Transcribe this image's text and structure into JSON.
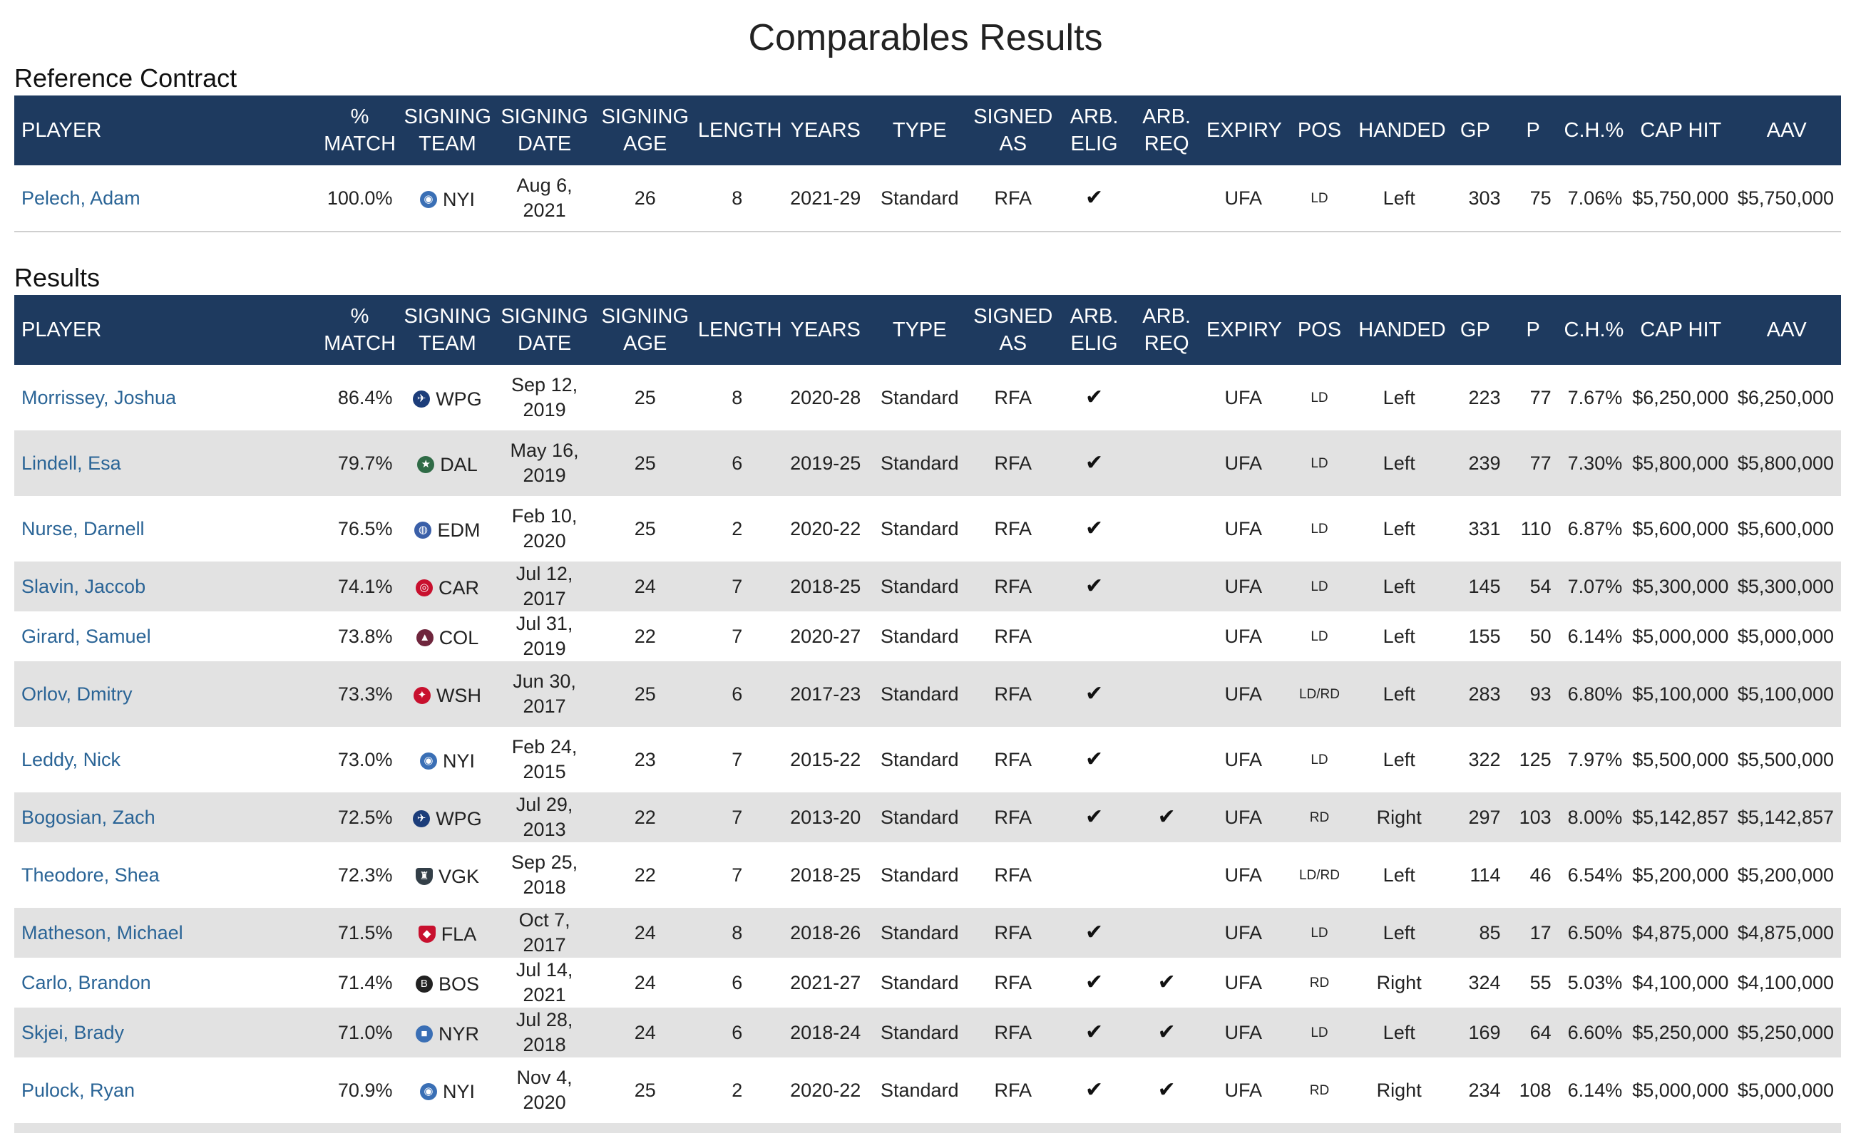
{
  "page_title": "Comparables Results",
  "reference_title": "Reference Contract",
  "results_title": "Results",
  "columns": {
    "player": "PLAYER",
    "match_l1": "%",
    "match_l2": "MATCH",
    "team_l1": "SIGNING",
    "team_l2": "TEAM",
    "date_l1": "SIGNING",
    "date_l2": "DATE",
    "age_l1": "SIGNING",
    "age_l2": "AGE",
    "length": "LENGTH",
    "years": "YEARS",
    "type": "TYPE",
    "signed_l1": "SIGNED",
    "signed_l2": "AS",
    "arbelig_l1": "ARB.",
    "arbelig_l2": "ELIG",
    "arbreq_l1": "ARB.",
    "arbreq_l2": "REQ",
    "expiry": "EXPIRY",
    "pos": "POS",
    "handed": "HANDED",
    "gp": "GP",
    "p": "P",
    "ch": "C.H.%",
    "cap": "CAP HIT",
    "aav": "AAV"
  },
  "team_icons": {
    "NYI": {
      "icon": "islanders-logo-icon",
      "color": "#3a6fb5",
      "glyph": "◉"
    },
    "WPG": {
      "icon": "jets-logo-icon",
      "color": "#1c3d7a",
      "glyph": "✈"
    },
    "DAL": {
      "icon": "stars-logo-icon",
      "color": "#2f6b46",
      "glyph": "★"
    },
    "EDM": {
      "icon": "oilers-logo-icon",
      "color": "#3a5fa8",
      "glyph": "◍"
    },
    "CAR": {
      "icon": "hurricanes-logo-icon",
      "color": "#c8102e",
      "glyph": "◎"
    },
    "COL": {
      "icon": "avalanche-logo-icon",
      "color": "#6f263d",
      "glyph": "▲"
    },
    "WSH": {
      "icon": "capitals-logo-icon",
      "color": "#c8102e",
      "glyph": "✦"
    },
    "VGK": {
      "icon": "golden-knights-logo-icon",
      "color": "#333f48",
      "glyph": "♜"
    },
    "FLA": {
      "icon": "panthers-logo-icon",
      "color": "#c8102e",
      "glyph": "◆"
    },
    "BOS": {
      "icon": "bruins-logo-icon",
      "color": "#222222",
      "glyph": "B"
    },
    "NYR": {
      "icon": "rangers-logo-icon",
      "color": "#3a6fb5",
      "glyph": "■"
    }
  },
  "check_mark": "✔",
  "reference": [
    {
      "player": "Pelech, Adam",
      "match": "100.0%",
      "team": "NYI",
      "date_l1": "Aug 6,",
      "date_l2": "2021",
      "age": "26",
      "length": "8",
      "years": "2021-29",
      "type": "Standard",
      "signed": "RFA",
      "arb_elig": true,
      "arb_req": false,
      "expiry": "UFA",
      "pos": "LD",
      "handed": "Left",
      "gp": "303",
      "p": "75",
      "ch": "7.06%",
      "cap": "$5,750,000",
      "aav": "$5,750,000"
    }
  ],
  "results": [
    {
      "player": "Morrissey, Joshua",
      "match": "86.4%",
      "team": "WPG",
      "date_l1": "Sep 12,",
      "date_l2": "2019",
      "age": "25",
      "length": "8",
      "years": "2020-28",
      "type": "Standard",
      "signed": "RFA",
      "arb_elig": true,
      "arb_req": false,
      "expiry": "UFA",
      "pos": "LD",
      "handed": "Left",
      "gp": "223",
      "p": "77",
      "ch": "7.67%",
      "cap": "$6,250,000",
      "aav": "$6,250,000"
    },
    {
      "player": "Lindell, Esa",
      "match": "79.7%",
      "team": "DAL",
      "date_l1": "May 16,",
      "date_l2": "2019",
      "age": "25",
      "length": "6",
      "years": "2019-25",
      "type": "Standard",
      "signed": "RFA",
      "arb_elig": true,
      "arb_req": false,
      "expiry": "UFA",
      "pos": "LD",
      "handed": "Left",
      "gp": "239",
      "p": "77",
      "ch": "7.30%",
      "cap": "$5,800,000",
      "aav": "$5,800,000"
    },
    {
      "player": "Nurse, Darnell",
      "match": "76.5%",
      "team": "EDM",
      "date_l1": "Feb 10,",
      "date_l2": "2020",
      "age": "25",
      "length": "2",
      "years": "2020-22",
      "type": "Standard",
      "signed": "RFA",
      "arb_elig": true,
      "arb_req": false,
      "expiry": "UFA",
      "pos": "LD",
      "handed": "Left",
      "gp": "331",
      "p": "110",
      "ch": "6.87%",
      "cap": "$5,600,000",
      "aav": "$5,600,000"
    },
    {
      "player": "Slavin, Jaccob",
      "match": "74.1%",
      "team": "CAR",
      "date_l1": "Jul 12, 2017",
      "date_l2": "",
      "age": "24",
      "length": "7",
      "years": "2018-25",
      "type": "Standard",
      "signed": "RFA",
      "arb_elig": true,
      "arb_req": false,
      "expiry": "UFA",
      "pos": "LD",
      "handed": "Left",
      "gp": "145",
      "p": "54",
      "ch": "7.07%",
      "cap": "$5,300,000",
      "aav": "$5,300,000"
    },
    {
      "player": "Girard, Samuel",
      "match": "73.8%",
      "team": "COL",
      "date_l1": "Jul 31, 2019",
      "date_l2": "",
      "age": "22",
      "length": "7",
      "years": "2020-27",
      "type": "Standard",
      "signed": "RFA",
      "arb_elig": false,
      "arb_req": false,
      "expiry": "UFA",
      "pos": "LD",
      "handed": "Left",
      "gp": "155",
      "p": "50",
      "ch": "6.14%",
      "cap": "$5,000,000",
      "aav": "$5,000,000"
    },
    {
      "player": "Orlov, Dmitry",
      "match": "73.3%",
      "team": "WSH",
      "date_l1": "Jun 30,",
      "date_l2": "2017",
      "age": "25",
      "length": "6",
      "years": "2017-23",
      "type": "Standard",
      "signed": "RFA",
      "arb_elig": true,
      "arb_req": false,
      "expiry": "UFA",
      "pos": "LD/RD",
      "handed": "Left",
      "gp": "283",
      "p": "93",
      "ch": "6.80%",
      "cap": "$5,100,000",
      "aav": "$5,100,000"
    },
    {
      "player": "Leddy, Nick",
      "match": "73.0%",
      "team": "NYI",
      "date_l1": "Feb 24,",
      "date_l2": "2015",
      "age": "23",
      "length": "7",
      "years": "2015-22",
      "type": "Standard",
      "signed": "RFA",
      "arb_elig": true,
      "arb_req": false,
      "expiry": "UFA",
      "pos": "LD",
      "handed": "Left",
      "gp": "322",
      "p": "125",
      "ch": "7.97%",
      "cap": "$5,500,000",
      "aav": "$5,500,000"
    },
    {
      "player": "Bogosian, Zach",
      "match": "72.5%",
      "team": "WPG",
      "date_l1": "Jul 29, 2013",
      "date_l2": "",
      "age": "22",
      "length": "7",
      "years": "2013-20",
      "type": "Standard",
      "signed": "RFA",
      "arb_elig": true,
      "arb_req": true,
      "expiry": "UFA",
      "pos": "RD",
      "handed": "Right",
      "gp": "297",
      "p": "103",
      "ch": "8.00%",
      "cap": "$5,142,857",
      "aav": "$5,142,857"
    },
    {
      "player": "Theodore, Shea",
      "match": "72.3%",
      "team": "VGK",
      "date_l1": "Sep 25,",
      "date_l2": "2018",
      "age": "22",
      "length": "7",
      "years": "2018-25",
      "type": "Standard",
      "signed": "RFA",
      "arb_elig": false,
      "arb_req": false,
      "expiry": "UFA",
      "pos": "LD/RD",
      "handed": "Left",
      "gp": "114",
      "p": "46",
      "ch": "6.54%",
      "cap": "$5,200,000",
      "aav": "$5,200,000"
    },
    {
      "player": "Matheson, Michael",
      "match": "71.5%",
      "team": "FLA",
      "date_l1": "Oct 7, 2017",
      "date_l2": "",
      "age": "24",
      "length": "8",
      "years": "2018-26",
      "type": "Standard",
      "signed": "RFA",
      "arb_elig": true,
      "arb_req": false,
      "expiry": "UFA",
      "pos": "LD",
      "handed": "Left",
      "gp": "85",
      "p": "17",
      "ch": "6.50%",
      "cap": "$4,875,000",
      "aav": "$4,875,000"
    },
    {
      "player": "Carlo, Brandon",
      "match": "71.4%",
      "team": "BOS",
      "date_l1": "Jul 14, 2021",
      "date_l2": "",
      "age": "24",
      "length": "6",
      "years": "2021-27",
      "type": "Standard",
      "signed": "RFA",
      "arb_elig": true,
      "arb_req": true,
      "expiry": "UFA",
      "pos": "RD",
      "handed": "Right",
      "gp": "324",
      "p": "55",
      "ch": "5.03%",
      "cap": "$4,100,000",
      "aav": "$4,100,000"
    },
    {
      "player": "Skjei, Brady",
      "match": "71.0%",
      "team": "NYR",
      "date_l1": "Jul 28, 2018",
      "date_l2": "",
      "age": "24",
      "length": "6",
      "years": "2018-24",
      "type": "Standard",
      "signed": "RFA",
      "arb_elig": true,
      "arb_req": true,
      "expiry": "UFA",
      "pos": "LD",
      "handed": "Left",
      "gp": "169",
      "p": "64",
      "ch": "6.60%",
      "cap": "$5,250,000",
      "aav": "$5,250,000"
    },
    {
      "player": "Pulock, Ryan",
      "match": "70.9%",
      "team": "NYI",
      "date_l1": "Nov 4,",
      "date_l2": "2020",
      "age": "25",
      "length": "2",
      "years": "2020-22",
      "type": "Standard",
      "signed": "RFA",
      "arb_elig": true,
      "arb_req": true,
      "expiry": "UFA",
      "pos": "RD",
      "handed": "Right",
      "gp": "234",
      "p": "108",
      "ch": "6.14%",
      "cap": "$5,000,000",
      "aav": "$5,000,000"
    }
  ]
}
